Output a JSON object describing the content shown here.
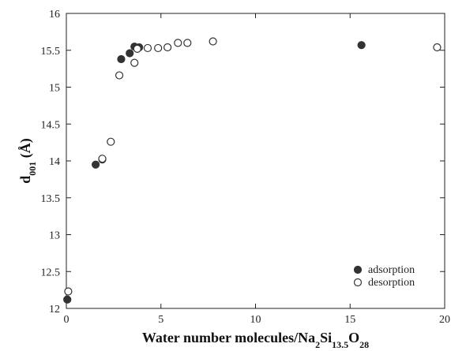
{
  "chart_data": {
    "type": "scatter",
    "xlim": [
      0,
      20
    ],
    "ylim": [
      12,
      16
    ],
    "x_ticks": [
      0,
      5,
      10,
      15,
      20
    ],
    "y_ticks": [
      12,
      12.5,
      13,
      13.5,
      14,
      14.5,
      15,
      15.5,
      16
    ],
    "x_tick_labels": [
      "0",
      "5",
      "10",
      "15",
      "20"
    ],
    "y_tick_labels": [
      "12",
      "12.5",
      "13",
      "13.5",
      "14",
      "14.5",
      "15",
      "15.5",
      "16"
    ],
    "xlabel": {
      "parts": [
        {
          "text": "Water number molecules/Na",
          "sub": false
        },
        {
          "text": "2",
          "sub": true
        },
        {
          "text": "Si",
          "sub": false
        },
        {
          "text": "13.5",
          "sub": true
        },
        {
          "text": "O",
          "sub": false
        },
        {
          "text": "28",
          "sub": true
        }
      ]
    },
    "ylabel": {
      "parts": [
        {
          "text": "d",
          "sub": false
        },
        {
          "text": "001",
          "sub": true
        },
        {
          "text": " (Å)",
          "sub": false
        }
      ]
    },
    "grid": false,
    "legend_position": "bottom-right",
    "series": [
      {
        "name": "adsorption",
        "marker": "filled-circle",
        "color": "#333333",
        "points": [
          [
            0.05,
            12.12
          ],
          [
            1.55,
            13.95
          ],
          [
            1.9,
            14.02
          ],
          [
            2.9,
            15.38
          ],
          [
            3.35,
            15.46
          ],
          [
            3.6,
            15.55
          ],
          [
            3.85,
            15.54
          ],
          [
            15.6,
            15.57
          ]
        ]
      },
      {
        "name": "desorption",
        "marker": "open-circle",
        "color": "#333333",
        "points": [
          [
            0.1,
            12.23
          ],
          [
            1.9,
            14.03
          ],
          [
            2.35,
            14.26
          ],
          [
            2.8,
            15.16
          ],
          [
            3.6,
            15.33
          ],
          [
            3.75,
            15.52
          ],
          [
            4.3,
            15.53
          ],
          [
            4.85,
            15.53
          ],
          [
            5.35,
            15.54
          ],
          [
            5.9,
            15.6
          ],
          [
            6.4,
            15.6
          ],
          [
            7.75,
            15.62
          ],
          [
            19.6,
            15.54
          ]
        ]
      }
    ]
  }
}
